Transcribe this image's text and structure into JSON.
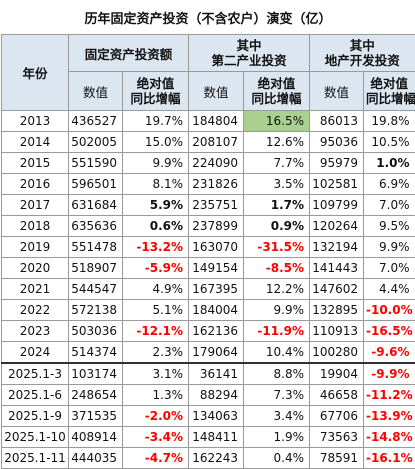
{
  "title": "历年固定资产投资（不含农户）演变（亿）",
  "header": {
    "year_label": "年份",
    "groups": [
      "固定资产投资额",
      "其中\n第二产业投资",
      "其中\n地产开发投资"
    ],
    "value_label": "数值",
    "growth_label": "绝对值\n同比增幅"
  },
  "rows": [
    {
      "year": "2013",
      "v1": "436527",
      "g1": "19.7%",
      "v2": "184804",
      "g2": "16.5%",
      "v3": "86013",
      "g3": "19.8%"
    },
    {
      "year": "2014",
      "v1": "502005",
      "g1": "15.0%",
      "v2": "208107",
      "g2": "12.6%",
      "v3": "95036",
      "g3": "10.5%"
    },
    {
      "year": "2015",
      "v1": "551590",
      "g1": "9.9%",
      "v2": "224090",
      "g2": "7.7%",
      "v3": "95979",
      "g3": "1.0%"
    },
    {
      "year": "2016",
      "v1": "596501",
      "g1": "8.1%",
      "v2": "231826",
      "g2": "3.5%",
      "v3": "102581",
      "g3": "6.9%"
    },
    {
      "year": "2017",
      "v1": "631684",
      "g1": "5.9%",
      "v2": "235751",
      "g2": "1.7%",
      "v3": "109799",
      "g3": "7.0%"
    },
    {
      "year": "2018",
      "v1": "635636",
      "g1": "0.6%",
      "v2": "237899",
      "g2": "0.9%",
      "v3": "120264",
      "g3": "9.5%"
    },
    {
      "year": "2019",
      "v1": "551478",
      "g1": "-13.2%",
      "v2": "163070",
      "g2": "-31.5%",
      "v3": "132194",
      "g3": "9.9%"
    },
    {
      "year": "2020",
      "v1": "518907",
      "g1": "-5.9%",
      "v2": "149154",
      "g2": "-8.5%",
      "v3": "141443",
      "g3": "7.0%"
    },
    {
      "year": "2021",
      "v1": "544547",
      "g1": "4.9%",
      "v2": "167395",
      "g2": "12.2%",
      "v3": "147602",
      "g3": "4.4%"
    },
    {
      "year": "2022",
      "v1": "572138",
      "g1": "5.1%",
      "v2": "184004",
      "g2": "9.9%",
      "v3": "132895",
      "g3": "-10.0%"
    },
    {
      "year": "2023",
      "v1": "503036",
      "g1": "-12.1%",
      "v2": "162136",
      "g2": "-11.9%",
      "v3": "110913",
      "g3": "-16.5%"
    },
    {
      "year": "2024",
      "v1": "514374",
      "g1": "2.3%",
      "v2": "179064",
      "g2": "10.4%",
      "v3": "100280",
      "g3": "-9.6%"
    },
    {
      "year": "2025.1-3",
      "v1": "103174",
      "g1": "3.1%",
      "v2": "36141",
      "g2": "8.8%",
      "v3": "19904",
      "g3": "-9.9%"
    },
    {
      "year": "2025.1-6",
      "v1": "248654",
      "g1": "1.3%",
      "v2": "88294",
      "g2": "7.3%",
      "v3": "46658",
      "g3": "-11.2%"
    },
    {
      "year": "2025.1-9",
      "v1": "371535",
      "g1": "-2.0%",
      "v2": "134063",
      "g2": "3.4%",
      "v3": "67706",
      "g3": "-13.9%"
    },
    {
      "year": "2025.1-10",
      "v1": "408914",
      "g1": "-3.4%",
      "v2": "148411",
      "g2": "1.9%",
      "v3": "73563",
      "g3": "-14.8%"
    },
    {
      "year": "2025.1-11",
      "v1": "444035",
      "g1": "-4.7%",
      "v2": "162243",
      "g2": "0.4%",
      "v3": "78591",
      "g3": "-16.1%"
    }
  ],
  "bold_cells": [
    {
      "row": 2,
      "col": "g3"
    },
    {
      "row": 4,
      "col": "g1"
    },
    {
      "row": 4,
      "col": "g2"
    },
    {
      "row": 5,
      "col": "g1"
    },
    {
      "row": 5,
      "col": "g2"
    }
  ],
  "highlight_cells": [
    {
      "row": 0,
      "col": "g2"
    }
  ],
  "section_break_before_row": 12,
  "colors": {
    "header_bg": "#dce6f1",
    "negative": "#ff0000",
    "highlight": "#a9d08e"
  }
}
